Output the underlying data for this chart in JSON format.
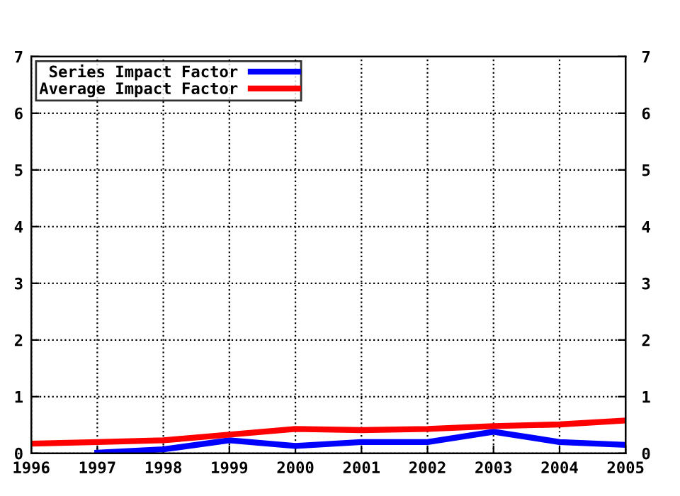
{
  "chart_data": {
    "type": "line",
    "x": [
      1996,
      1997,
      1998,
      1999,
      2000,
      2001,
      2002,
      2003,
      2004,
      2005
    ],
    "series": [
      {
        "name": "Series Impact Factor",
        "color": "#0000ff",
        "values": [
          null,
          0.01,
          0.07,
          0.23,
          0.13,
          0.2,
          0.2,
          0.38,
          0.2,
          0.15
        ]
      },
      {
        "name": "Average Impact Factor",
        "color": "#ff0000",
        "values": [
          0.17,
          0.2,
          0.23,
          0.33,
          0.43,
          0.41,
          0.43,
          0.48,
          0.51,
          0.58
        ]
      }
    ],
    "xlim": [
      1996,
      2005
    ],
    "xticks": [
      1996,
      1997,
      1998,
      1999,
      2000,
      2001,
      2002,
      2003,
      2004,
      2005
    ],
    "ylim": [
      0,
      7
    ],
    "yticks": [
      0,
      1,
      2,
      3,
      4,
      5,
      6,
      7
    ],
    "y2lim": [
      0,
      7
    ],
    "y2ticks": [
      0,
      1,
      2,
      3,
      4,
      5,
      6,
      7
    ],
    "grid": true,
    "legend": "top left",
    "marker": "none",
    "line_style": "solid"
  }
}
